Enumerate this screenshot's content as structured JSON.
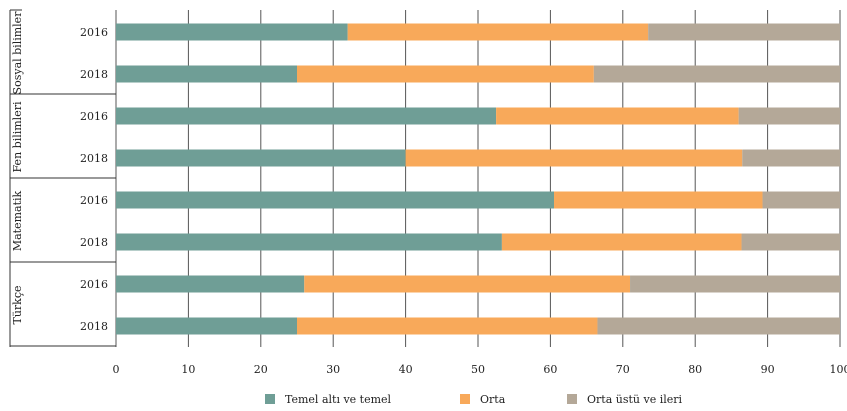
{
  "chart_data": {
    "type": "bar",
    "orientation": "horizontal",
    "stacked": true,
    "xlim": [
      0,
      100
    ],
    "x_ticks": [
      "0",
      "10",
      "20",
      "30",
      "40",
      "50",
      "60",
      "70",
      "80",
      "90",
      "100"
    ],
    "grid": "vertical",
    "legend_position": "bottom",
    "colors": {
      "Temel altı ve temel": "#6f9e96",
      "Orta": "#f8a95a",
      "Orta üstü ve ileri": "#b4a898"
    },
    "groups": [
      {
        "label": "Sosyal bilimler",
        "rows": [
          {
            "year": "2016",
            "values": [
              32,
              41.5,
              26.5
            ]
          },
          {
            "year": "2018",
            "values": [
              25,
              41,
              34
            ]
          }
        ]
      },
      {
        "label": "Fen bilimleri",
        "rows": [
          {
            "year": "2016",
            "values": [
              52.5,
              33.5,
              14
            ]
          },
          {
            "year": "2018",
            "values": [
              40,
              46.5,
              13.5
            ]
          }
        ]
      },
      {
        "label": "Matematik",
        "rows": [
          {
            "year": "2016",
            "values": [
              60.5,
              28.8,
              10.7
            ]
          },
          {
            "year": "2018",
            "values": [
              53.3,
              33.1,
              13.6
            ]
          }
        ]
      },
      {
        "label": "Türkçe",
        "rows": [
          {
            "year": "2016",
            "values": [
              26,
              45,
              29
            ]
          },
          {
            "year": "2018",
            "values": [
              25,
              41.5,
              33.5
            ]
          }
        ]
      }
    ],
    "series": [
      {
        "name": "Temel altı ve temel"
      },
      {
        "name": "Orta"
      },
      {
        "name": "Orta üstü ve ileri"
      }
    ]
  }
}
